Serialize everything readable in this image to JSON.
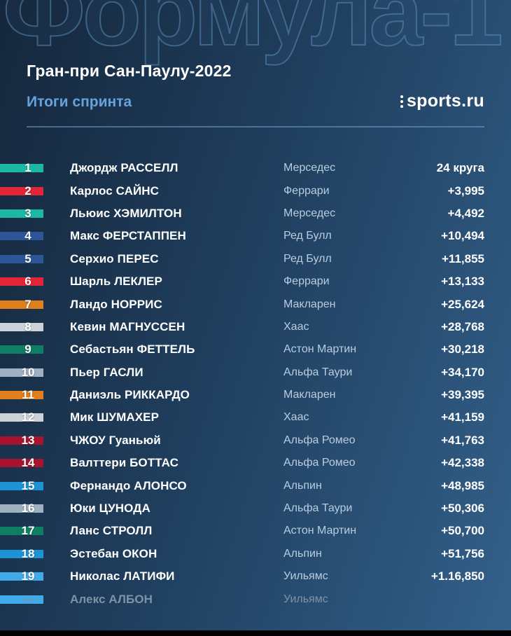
{
  "header": {
    "watermark": "Формула-1",
    "title": "Гран-при Сан-Паулу-2022",
    "subtitle": "Итоги спринта",
    "brand": "sports.ru"
  },
  "chart_data": {
    "type": "table",
    "title": "Гран-при Сан-Паулу-2022",
    "subtitle": "Итоги спринта",
    "rows": [
      {
        "pos": "1",
        "driver": "Джордж РАССЕЛЛ",
        "team": "Мерседес",
        "gap": "24 круга",
        "color": "#1db8a5",
        "dimmed": false
      },
      {
        "pos": "2",
        "driver": "Карлос САЙНС",
        "team": "Феррари",
        "gap": "+3,995",
        "color": "#e22638",
        "dimmed": false
      },
      {
        "pos": "3",
        "driver": "Льюис ХЭМИЛТОН",
        "team": "Мерседес",
        "gap": "+4,492",
        "color": "#1db8a5",
        "dimmed": false
      },
      {
        "pos": "4",
        "driver": "Макс ФЕРСТАППЕН",
        "team": "Ред Булл",
        "gap": "+10,494",
        "color": "#2d5699",
        "dimmed": false
      },
      {
        "pos": "5",
        "driver": "Серхио ПЕРЕС",
        "team": "Ред Булл",
        "gap": "+11,855",
        "color": "#2d5699",
        "dimmed": false
      },
      {
        "pos": "6",
        "driver": "Шарль ЛЕКЛЕР",
        "team": "Феррари",
        "gap": "+13,133",
        "color": "#e22638",
        "dimmed": false
      },
      {
        "pos": "7",
        "driver": "Ландо НОРРИС",
        "team": "Макларен",
        "gap": "+25,624",
        "color": "#e07f1d",
        "dimmed": false
      },
      {
        "pos": "8",
        "driver": "Кевин МАГНУССЕН",
        "team": "Хаас",
        "gap": "+28,768",
        "color": "#ccd2d7",
        "dimmed": false
      },
      {
        "pos": "9",
        "driver": "Себастьян ФЕТТЕЛЬ",
        "team": "Астон Мартин",
        "gap": "+30,218",
        "color": "#0f7f63",
        "dimmed": false
      },
      {
        "pos": "10",
        "driver": "Пьер ГАСЛИ",
        "team": "Альфа Таури",
        "gap": "+34,170",
        "color": "#9db1c0",
        "dimmed": false
      },
      {
        "pos": "11",
        "driver": "Даниэль РИККАРДО",
        "team": "Макларен",
        "gap": "+39,395",
        "color": "#e07f1d",
        "dimmed": false
      },
      {
        "pos": "12",
        "driver": "Мик ШУМАХЕР",
        "team": "Хаас",
        "gap": "+41,159",
        "color": "#ccd2d7",
        "dimmed": false
      },
      {
        "pos": "13",
        "driver": "ЧЖОУ Гуаньюй",
        "team": "Альфа Ромео",
        "gap": "+41,763",
        "color": "#a8132f",
        "dimmed": false
      },
      {
        "pos": "14",
        "driver": "Валттери БОТТАС",
        "team": "Альфа Ромео",
        "gap": "+42,338",
        "color": "#a8132f",
        "dimmed": false
      },
      {
        "pos": "15",
        "driver": "Фернандо АЛОНСО",
        "team": "Альпин",
        "gap": "+48,985",
        "color": "#1d93d6",
        "dimmed": false
      },
      {
        "pos": "16",
        "driver": "Юки ЦУНОДА",
        "team": "Альфа Таури",
        "gap": "+50,306",
        "color": "#9db1c0",
        "dimmed": false
      },
      {
        "pos": "17",
        "driver": "Ланс СТРОЛЛ",
        "team": "Астон Мартин",
        "gap": "+50,700",
        "color": "#0f7f63",
        "dimmed": false
      },
      {
        "pos": "18",
        "driver": "Эстебан ОКОН",
        "team": "Альпин",
        "gap": "+51,756",
        "color": "#1d93d6",
        "dimmed": false
      },
      {
        "pos": "19",
        "driver": "Николас ЛАТИФИ",
        "team": "Уильямс",
        "gap": "+1.16,850",
        "color": "#41aae8",
        "dimmed": false
      },
      {
        "pos": "—",
        "driver": "Алекс АЛБОН",
        "team": "Уильямс",
        "gap": "",
        "color": "#41aae8",
        "dimmed": true
      }
    ]
  },
  "colors": {
    "background_top": "#15273c",
    "background_bottom": "#33608a",
    "subtitle_accent": "#66a3da",
    "team_text": "#b9cde0",
    "dimmed_text": "#7d93a8",
    "watermark_stroke": "#6094c2"
  }
}
